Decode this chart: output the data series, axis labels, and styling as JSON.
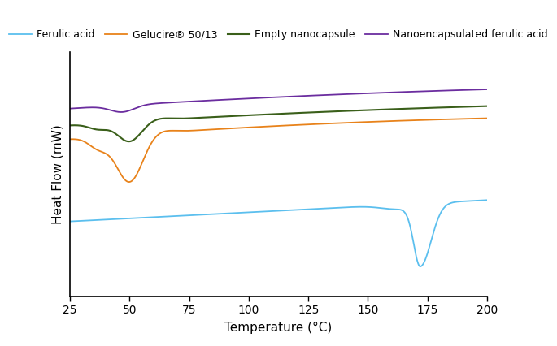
{
  "xlabel": "Temperature (°C)",
  "ylabel": "Heat Flow (mW)",
  "xlim": [
    25,
    200
  ],
  "ylim": [
    -4.5,
    3.5
  ],
  "xticks": [
    25,
    50,
    75,
    100,
    125,
    150,
    175,
    200
  ],
  "legend_labels": [
    "Ferulic acid",
    "Gelucire® 50/13",
    "Empty nanocapsule",
    "Nanoencapsulated ferulic acid"
  ],
  "colors": {
    "ferulic_acid": "#5bbfee",
    "gelucire": "#e8821a",
    "empty_nano": "#3a5f1a",
    "nano_ferulic": "#6b2d9f"
  },
  "background_color": "#ffffff",
  "figsize": [
    6.85,
    4.26
  ],
  "dpi": 100
}
